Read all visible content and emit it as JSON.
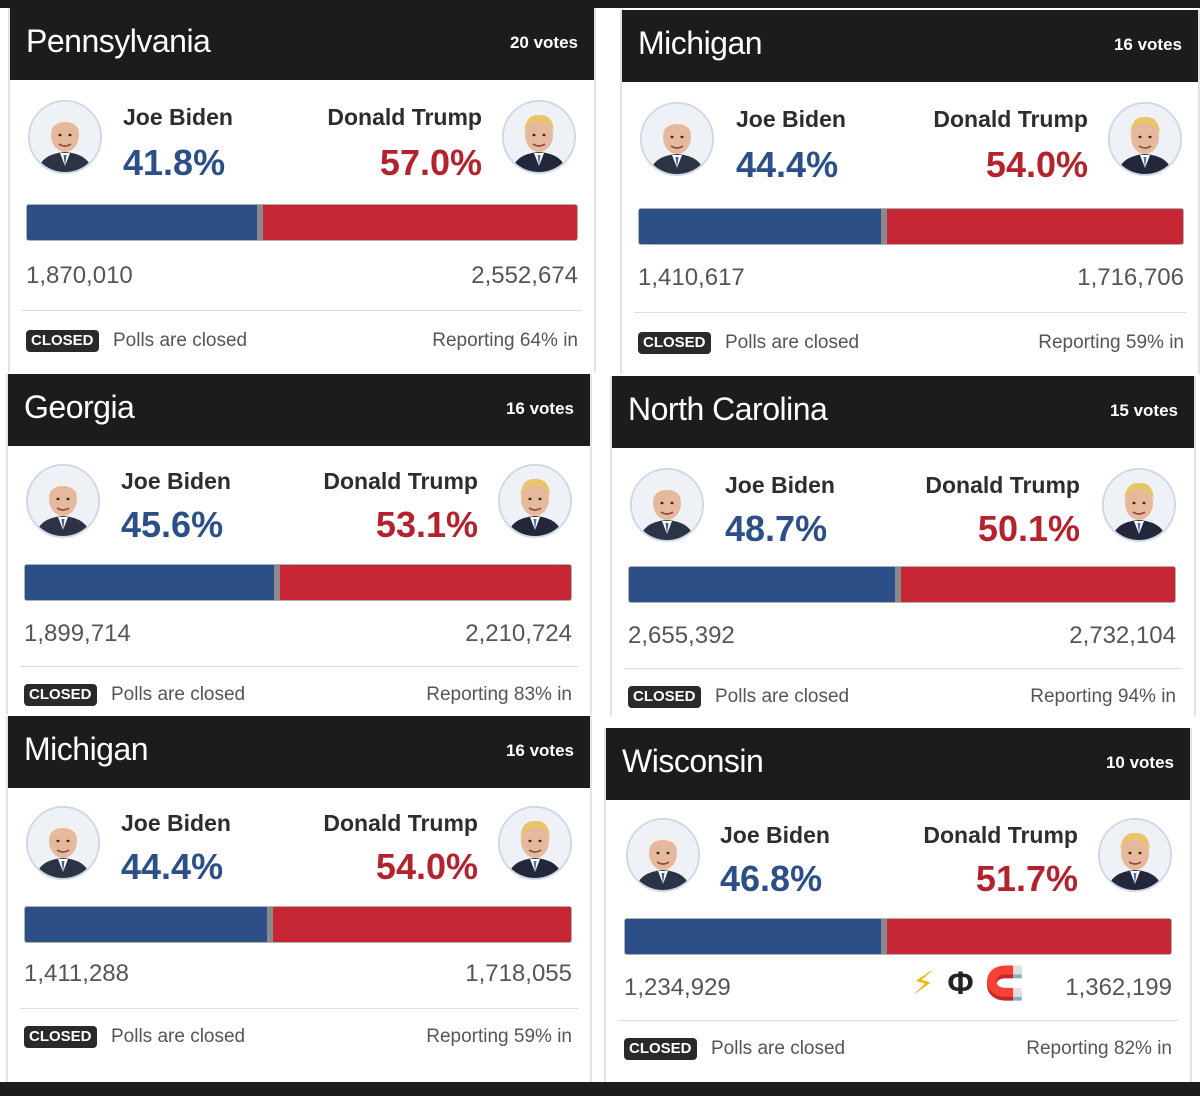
{
  "panels": [
    {
      "state": "Pennsylvania",
      "votes_label": "20 votes",
      "biden": {
        "name": "Joe Biden",
        "pct": "41.8%",
        "votes": "1,870,010"
      },
      "trump": {
        "name": "Donald Trump",
        "pct": "57.0%",
        "votes": "2,552,674"
      },
      "biden_share": 0.418,
      "closed_badge": "CLOSED",
      "status": "Polls are closed",
      "reporting": "Reporting 64% in"
    },
    {
      "state": "Michigan",
      "votes_label": "16 votes",
      "biden": {
        "name": "Joe Biden",
        "pct": "44.4%",
        "votes": "1,410,617"
      },
      "trump": {
        "name": "Donald Trump",
        "pct": "54.0%",
        "votes": "1,716,706"
      },
      "biden_share": 0.444,
      "closed_badge": "CLOSED",
      "status": "Polls are closed",
      "reporting": "Reporting 59% in"
    },
    {
      "state": "Georgia",
      "votes_label": "16 votes",
      "biden": {
        "name": "Joe Biden",
        "pct": "45.6%",
        "votes": "1,899,714"
      },
      "trump": {
        "name": "Donald Trump",
        "pct": "53.1%",
        "votes": "2,210,724"
      },
      "biden_share": 0.456,
      "closed_badge": "CLOSED",
      "status": "Polls are closed",
      "reporting": "Reporting 83% in"
    },
    {
      "state": "North Carolina",
      "votes_label": "15 votes",
      "biden": {
        "name": "Joe Biden",
        "pct": "48.7%",
        "votes": "2,655,392"
      },
      "trump": {
        "name": "Donald Trump",
        "pct": "50.1%",
        "votes": "2,732,104"
      },
      "biden_share": 0.487,
      "closed_badge": "CLOSED",
      "status": "Polls are closed",
      "reporting": "Reporting 94% in"
    },
    {
      "state": "Michigan",
      "votes_label": "16 votes",
      "biden": {
        "name": "Joe Biden",
        "pct": "44.4%",
        "votes": "1,411,288"
      },
      "trump": {
        "name": "Donald Trump",
        "pct": "54.0%",
        "votes": "1,718,055"
      },
      "biden_share": 0.444,
      "closed_badge": "CLOSED",
      "status": "Polls are closed",
      "reporting": "Reporting 59% in"
    },
    {
      "state": "Wisconsin",
      "votes_label": "10 votes",
      "biden": {
        "name": "Joe Biden",
        "pct": "46.8%",
        "votes": "1,234,929"
      },
      "trump": {
        "name": "Donald Trump",
        "pct": "51.7%",
        "votes": "1,362,199"
      },
      "biden_share": 0.468,
      "closed_badge": "CLOSED",
      "status": "Polls are closed",
      "reporting": "Reporting 82% in",
      "emoji_icons": [
        "lightning-bolt-icon",
        "phi-symbol-icon",
        "magnet-icon"
      ]
    }
  ],
  "colors": {
    "biden": "#2c4f88",
    "trump": "#c62634",
    "header": "#1c1c1c"
  }
}
